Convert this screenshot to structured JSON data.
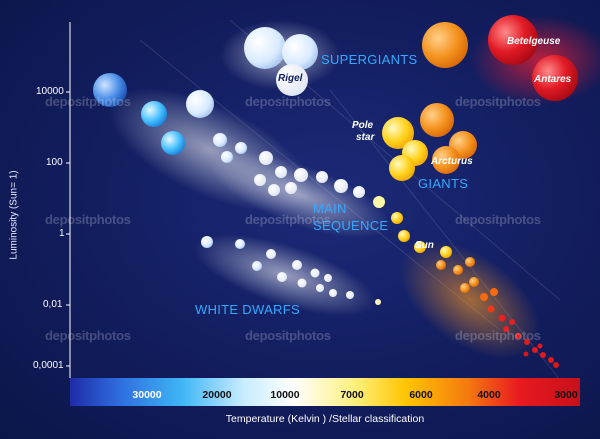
{
  "axes": {
    "ylabel": "Luminosity (Sun= 1)",
    "yticks": [
      "10000",
      "100",
      "1",
      "0,01",
      "0,0001"
    ],
    "xticks": [
      "30000",
      "20000",
      "10000",
      "7000",
      "6000",
      "4000",
      "3000"
    ],
    "xlabel": "Temperature (Kelvin ) /Stellar classification"
  },
  "regions": {
    "supergiants": "SUPERGIANTS",
    "giants": "GIANTS",
    "main_sequence_1": "MAIN",
    "main_sequence_2": "SEQUENCE",
    "white_dwarfs": "WHITE DWARFS"
  },
  "stars": {
    "rigel": "Rigel",
    "betelgeuse": "Betelgeuse",
    "antares": "Antares",
    "pole_star_1": "Pole",
    "pole_star_2": "star",
    "arcturus": "Arcturus",
    "sun": "Sun"
  },
  "watermark": "depositphotos",
  "colors": {
    "background": "#121d5e",
    "region_text": "#33aaff"
  }
}
